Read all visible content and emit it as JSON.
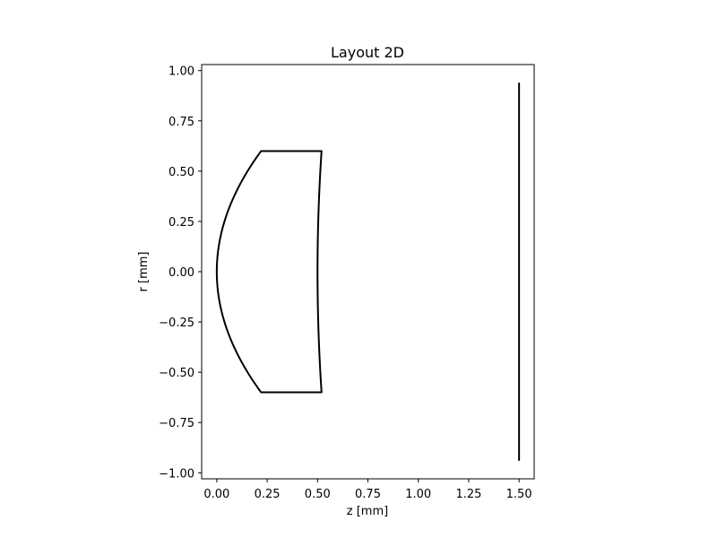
{
  "chart_data": {
    "type": "line",
    "title": "Layout 2D",
    "xlabel": "z [mm]",
    "ylabel": "r [mm]",
    "xlim": [
      -0.075,
      1.575
    ],
    "ylim": [
      -1.03,
      1.03
    ],
    "x_ticks": [
      0.0,
      0.25,
      0.5,
      0.75,
      1.0,
      1.25,
      1.5
    ],
    "x_tick_labels": [
      "0.00",
      "0.25",
      "0.50",
      "0.75",
      "1.00",
      "1.25",
      "1.50"
    ],
    "y_ticks": [
      1.0,
      0.75,
      0.5,
      0.25,
      0.0,
      -0.25,
      -0.5,
      -0.75,
      -1.0
    ],
    "y_tick_labels": [
      "1.00",
      "0.75",
      "0.50",
      "0.25",
      "0.00",
      "−0.25",
      "−0.50",
      "−0.75",
      "−1.00"
    ],
    "grid": false,
    "line_color": "#000000",
    "series": [
      {
        "shape": "lens",
        "front_surface": {
          "vertex_z": 0.0,
          "edge_z": 0.22,
          "half_aperture": 0.6
        },
        "back_surface": {
          "vertex_z": 0.5,
          "edge_z": 0.52,
          "half_aperture": 0.6
        }
      },
      {
        "shape": "image_plane",
        "z": 1.5,
        "r_range": [
          -0.94,
          0.94
        ]
      }
    ]
  }
}
